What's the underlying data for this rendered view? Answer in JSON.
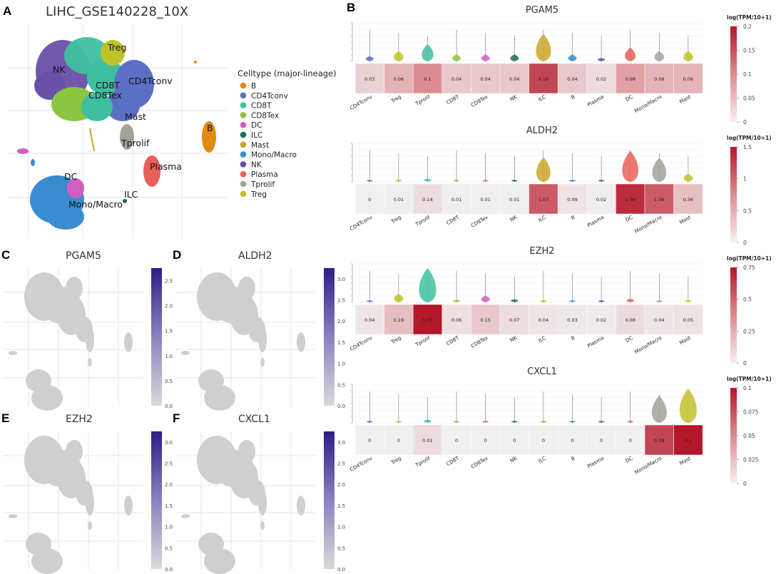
{
  "panels": {
    "A": {
      "letter": "A",
      "title": "LIHC_GSE140228_10X",
      "legend_title": "Celltype (major-lineage)",
      "legend": [
        {
          "label": "B",
          "color": "#e08a14"
        },
        {
          "label": "CD4Tconv",
          "color": "#5b6fc4"
        },
        {
          "label": "CD8T",
          "color": "#3fbfa0"
        },
        {
          "label": "CD8Tex",
          "color": "#8cc640"
        },
        {
          "label": "DC",
          "color": "#d45ec0"
        },
        {
          "label": "ILC",
          "color": "#1e6b5a"
        },
        {
          "label": "Mast",
          "color": "#c9a62a"
        },
        {
          "label": "Mono/Macro",
          "color": "#3a8cd0"
        },
        {
          "label": "NK",
          "color": "#6a4fa8"
        },
        {
          "label": "Plasma",
          "color": "#e8605a"
        },
        {
          "label": "Tprolif",
          "color": "#a3a39a"
        },
        {
          "label": "Treg",
          "color": "#bfc22a"
        }
      ],
      "cluster_labels": [
        "Treg",
        "NK",
        "CD4Tconv",
        "CD8T",
        "CD8Tex",
        "Mast",
        "B",
        "Tprolif",
        "Plasma",
        "DC",
        "ILC",
        "Mono/Macro"
      ]
    },
    "B": {
      "letter": "B"
    },
    "C": {
      "letter": "C",
      "gene": "PGAM5",
      "colorbar_ticks": [
        "2.5",
        "2.0",
        "1.5",
        "1.0",
        "0.5",
        "0.0"
      ]
    },
    "D": {
      "letter": "D",
      "gene": "ALDH2",
      "colorbar_ticks": [
        "3.0",
        "2.5",
        "2.0",
        "1.5",
        "1.0",
        "0.5",
        "0.0"
      ]
    },
    "E": {
      "letter": "E",
      "gene": "EZH2",
      "colorbar_ticks": [
        "3.0",
        "2.5",
        "2.0",
        "1.5",
        "1.0",
        "0.5",
        "0.0"
      ]
    },
    "F": {
      "letter": "F",
      "gene": "CXCL1",
      "colorbar_ticks": [
        "3.0",
        "2.5",
        "2.0",
        "1.5",
        "1.0",
        "0.5",
        "0.0"
      ]
    }
  },
  "chart_data": [
    {
      "type": "heatmap",
      "title": "PGAM5",
      "categories": [
        "CD4Tconv",
        "Treg",
        "Tprolif",
        "CD8T",
        "CD8Tex",
        "NK",
        "ILC",
        "B",
        "Plasma",
        "DC",
        "Mono/Macro",
        "Mast"
      ],
      "values": [
        0.03,
        0.06,
        0.1,
        0.04,
        0.04,
        0.04,
        0.16,
        0.04,
        0.02,
        0.08,
        0.06,
        0.06
      ],
      "labels": [
        "0.03",
        "0.06",
        "0.1",
        "0.04",
        "0.04",
        "0.04",
        "0.16",
        "0.04",
        "0.02",
        "0.08",
        "0.06",
        "0.06"
      ],
      "colorbar_label": "log(TPM/10+1)",
      "colorbar_ticks": [
        "0.2",
        "0.15",
        "0.1",
        "0.05",
        "0"
      ],
      "vmax": 0.2
    },
    {
      "type": "heatmap",
      "title": "ALDH2",
      "categories": [
        "CD4Tconv",
        "Treg",
        "Tprolif",
        "CD8T",
        "CD8Tex",
        "NK",
        "ILC",
        "B",
        "Plasma",
        "DC",
        "Mono/Macro",
        "Mast"
      ],
      "values": [
        0,
        0.01,
        0.14,
        0.01,
        0.01,
        0.01,
        1.07,
        0.09,
        0.02,
        1.36,
        1.06,
        0.36
      ],
      "labels": [
        "0",
        "0.01",
        "0.14",
        "0.01",
        "0.01",
        "0.01",
        "1.07",
        "0.09",
        "0.02",
        "1.36",
        "1.06",
        "0.36"
      ],
      "colorbar_label": "log(TPM/10+1)",
      "colorbar_ticks": [
        "1.5",
        "1",
        "0.5",
        "0"
      ],
      "vmax": 1.5
    },
    {
      "type": "heatmap",
      "title": "EZH2",
      "categories": [
        "CD4Tconv",
        "Treg",
        "Tprolif",
        "CD8T",
        "CD8Tex",
        "NK",
        "ILC",
        "B",
        "Plasma",
        "DC",
        "Mono/Macro",
        "Mast"
      ],
      "values": [
        0.04,
        0.19,
        0.75,
        0.06,
        0.15,
        0.07,
        0.04,
        0.03,
        0.02,
        0.08,
        0.04,
        0.05
      ],
      "labels": [
        "0.04",
        "0.19",
        "0.75",
        "0.06",
        "0.15",
        "0.07",
        "0.04",
        "0.03",
        "0.02",
        "0.08",
        "0.04",
        "0.05"
      ],
      "colorbar_label": "log(TPM/10+1)",
      "colorbar_ticks": [
        "0.75",
        "0.5",
        "0.25",
        "0"
      ],
      "vmax": 0.75
    },
    {
      "type": "heatmap",
      "title": "CXCL1",
      "categories": [
        "CD4Tconv",
        "Treg",
        "Tprolif",
        "CD8T",
        "CD8Tex",
        "NK",
        "ILC",
        "B",
        "Plasma",
        "DC",
        "Mono/Macro",
        "Mast"
      ],
      "values": [
        0,
        0,
        0.01,
        0,
        0,
        0,
        0,
        0,
        0,
        0,
        0.08,
        0.1
      ],
      "labels": [
        "0",
        "0",
        "0.01",
        "0",
        "0",
        "0",
        "0",
        "0",
        "0",
        "0",
        "0.08",
        "0.1"
      ],
      "colorbar_label": "log(TPM/10+1)",
      "colorbar_ticks": [
        "0.1",
        "0.075",
        "0.05",
        "0.025",
        "0"
      ],
      "vmax": 0.1
    }
  ]
}
